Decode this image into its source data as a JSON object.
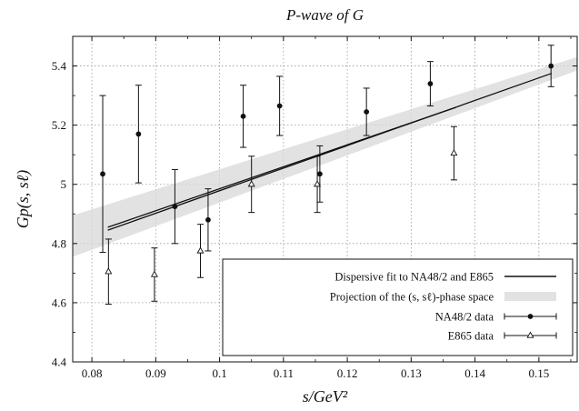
{
  "chart_data": {
    "type": "scatter",
    "title": "P-wave of G",
    "xlabel": "s/GeV²",
    "ylabel": "Gp(s, sℓ)",
    "xlim": [
      0.077,
      0.156
    ],
    "ylim": [
      4.4,
      5.5
    ],
    "x_ticks": [
      0.08,
      0.09,
      0.1,
      0.11,
      0.12,
      0.13,
      0.14,
      0.15
    ],
    "x_tick_labels": [
      "0.08",
      "0.09",
      "0.1",
      "0.11",
      "0.12",
      "0.13",
      "0.14",
      "0.15"
    ],
    "y_ticks": [
      4.4,
      4.6,
      4.8,
      5.0,
      5.2,
      5.4
    ],
    "y_tick_labels": [
      "4.4",
      "4.6",
      "4.8",
      "5",
      "5.2",
      "5.4"
    ],
    "grid": true,
    "legend_position": "bottom-right",
    "series": [
      {
        "name": "Dispersive fit to NA48/2 and E865",
        "kind": "double-line",
        "color": "#111111",
        "lines": [
          {
            "x": [
              0.0825,
              0.137
            ],
            "y": [
              4.855,
              5.26
            ]
          },
          {
            "x": [
              0.0825,
              0.152
            ],
            "y": [
              4.845,
              5.375
            ]
          }
        ]
      },
      {
        "name": "Projection of the (s, sℓ)-phase space",
        "kind": "band",
        "color": "#d8d8d8",
        "x": [
          0.077,
          0.156
        ],
        "y_low": [
          4.755,
          5.385
        ],
        "y_high": [
          4.895,
          5.43
        ]
      },
      {
        "name": "NA48/2 data",
        "kind": "points",
        "marker": "circle",
        "color": "#111111",
        "x": [
          0.0817,
          0.0873,
          0.093,
          0.0982,
          0.1037,
          0.1094,
          0.1157,
          0.123,
          0.133,
          0.1519
        ],
        "y": [
          5.035,
          5.17,
          4.925,
          4.88,
          5.23,
          5.265,
          5.035,
          5.245,
          5.34,
          5.4
        ],
        "err": [
          0.265,
          0.165,
          0.125,
          0.105,
          0.105,
          0.1,
          0.095,
          0.08,
          0.075,
          0.07
        ]
      },
      {
        "name": "E865 data",
        "kind": "points",
        "marker": "triangle",
        "color": "#111111",
        "x": [
          0.0826,
          0.0898,
          0.097,
          0.105,
          0.1153,
          0.1367
        ],
        "y": [
          4.705,
          4.695,
          4.775,
          5.0,
          5.0,
          5.105
        ],
        "err": [
          0.11,
          0.09,
          0.09,
          0.095,
          0.095,
          0.09
        ]
      }
    ]
  }
}
